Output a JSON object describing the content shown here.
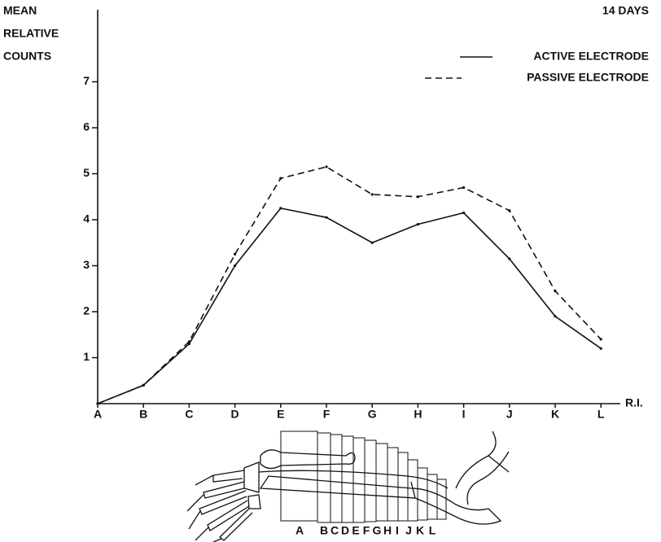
{
  "chart_data": {
    "type": "line",
    "title": "14 DAYS",
    "y_label_lines": [
      "MEAN",
      "RELATIVE",
      "COUNTS"
    ],
    "x_label": "R.I.",
    "categories": [
      "A",
      "B",
      "C",
      "D",
      "E",
      "F",
      "G",
      "H",
      "I",
      "J",
      "K",
      "L"
    ],
    "series": [
      {
        "name": "ACTIVE ELECTRODE",
        "color": "#111111",
        "dash": false,
        "values": [
          0,
          0.4,
          1.3,
          3.0,
          4.25,
          4.05,
          3.5,
          3.9,
          4.15,
          3.15,
          1.9,
          1.2
        ]
      },
      {
        "name": "PASSIVE ELECTRODE",
        "color": "#111111",
        "dash": true,
        "values": [
          0,
          0.4,
          1.35,
          3.25,
          4.9,
          5.15,
          4.55,
          4.5,
          4.7,
          4.2,
          2.45,
          1.4
        ]
      }
    ],
    "ylim": [
      0,
      8.5
    ],
    "yticks": [
      1,
      2,
      3,
      4,
      5,
      6,
      7
    ],
    "grid": false,
    "legend": "top-right",
    "diagram_letters": [
      "A",
      "B",
      "C",
      "D",
      "E",
      "F",
      "G",
      "H",
      "I",
      "J",
      "K",
      "L"
    ]
  }
}
